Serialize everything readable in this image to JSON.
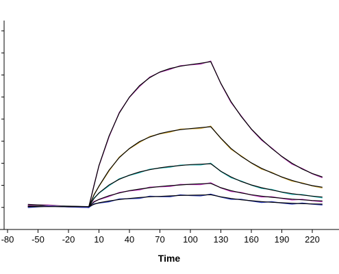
{
  "chart_data": {
    "type": "line",
    "xlabel": "Time",
    "ylabel": "",
    "x_tick_labels": [
      "-80",
      "-50",
      "-20",
      "10",
      "40",
      "70",
      "100",
      "130",
      "160",
      "190",
      "220"
    ],
    "xlim": [
      -80,
      230
    ],
    "ylim": [
      -1,
      8
    ],
    "y_tick_count": 10,
    "grid": false,
    "legend": "none",
    "series": [
      {
        "color": "#b03ab0",
        "x": [
          -60,
          -40,
          -20,
          0,
          5,
          10,
          20,
          30,
          40,
          50,
          60,
          70,
          80,
          90,
          100,
          110,
          120,
          130,
          140,
          150,
          160,
          170,
          180,
          190,
          200,
          210,
          220,
          230
        ],
        "values": [
          0.1,
          0.05,
          0.02,
          0.0,
          0.9,
          1.8,
          3.1,
          4.1,
          4.8,
          5.3,
          5.65,
          5.9,
          6.05,
          6.15,
          6.22,
          6.28,
          6.35,
          5.4,
          4.6,
          3.95,
          3.4,
          2.95,
          2.55,
          2.2,
          1.9,
          1.65,
          1.45,
          1.3
        ]
      },
      {
        "color": "#d4aa3c",
        "x": [
          -60,
          -40,
          -20,
          0,
          5,
          10,
          20,
          30,
          40,
          50,
          60,
          70,
          80,
          90,
          100,
          110,
          120,
          130,
          140,
          150,
          160,
          170,
          180,
          190,
          200,
          210,
          220,
          230
        ],
        "values": [
          0.02,
          0.02,
          0.01,
          0.0,
          0.5,
          0.9,
          1.6,
          2.15,
          2.55,
          2.85,
          3.05,
          3.2,
          3.3,
          3.37,
          3.42,
          3.46,
          3.5,
          3.0,
          2.55,
          2.2,
          1.92,
          1.68,
          1.48,
          1.3,
          1.15,
          1.02,
          0.92,
          0.85
        ]
      },
      {
        "color": "#3cc8c8",
        "x": [
          -60,
          -40,
          -20,
          0,
          5,
          10,
          20,
          30,
          40,
          50,
          60,
          70,
          80,
          90,
          100,
          110,
          120,
          130,
          140,
          150,
          160,
          170,
          180,
          190,
          200,
          210,
          220,
          230
        ],
        "values": [
          0.02,
          0.01,
          0.01,
          0.0,
          0.35,
          0.6,
          0.95,
          1.2,
          1.38,
          1.52,
          1.62,
          1.7,
          1.76,
          1.8,
          1.84,
          1.86,
          1.88,
          1.55,
          1.3,
          1.1,
          0.95,
          0.83,
          0.73,
          0.64,
          0.57,
          0.51,
          0.46,
          0.42
        ]
      },
      {
        "color": "#c83cc8",
        "x": [
          -60,
          -40,
          -20,
          0,
          5,
          10,
          20,
          30,
          40,
          50,
          60,
          70,
          80,
          90,
          100,
          110,
          120,
          130,
          140,
          150,
          160,
          170,
          180,
          190,
          200,
          210,
          220,
          230
        ],
        "values": [
          0.02,
          0.01,
          0.0,
          0.0,
          0.2,
          0.32,
          0.48,
          0.6,
          0.7,
          0.77,
          0.83,
          0.88,
          0.92,
          0.95,
          0.98,
          1.0,
          1.02,
          0.83,
          0.7,
          0.6,
          0.52,
          0.46,
          0.41,
          0.37,
          0.33,
          0.3,
          0.27,
          0.25
        ]
      },
      {
        "color": "#2a3ab8",
        "x": [
          -60,
          -40,
          -20,
          0,
          5,
          10,
          20,
          30,
          40,
          50,
          60,
          70,
          80,
          90,
          100,
          110,
          120,
          130,
          140,
          150,
          160,
          170,
          180,
          190,
          200,
          210,
          220,
          230
        ],
        "values": [
          0.0,
          0.0,
          0.0,
          0.0,
          0.1,
          0.17,
          0.25,
          0.31,
          0.36,
          0.4,
          0.43,
          0.45,
          0.47,
          0.49,
          0.5,
          0.51,
          0.52,
          0.43,
          0.36,
          0.3,
          0.26,
          0.22,
          0.19,
          0.17,
          0.15,
          0.13,
          0.12,
          0.11
        ]
      }
    ]
  }
}
